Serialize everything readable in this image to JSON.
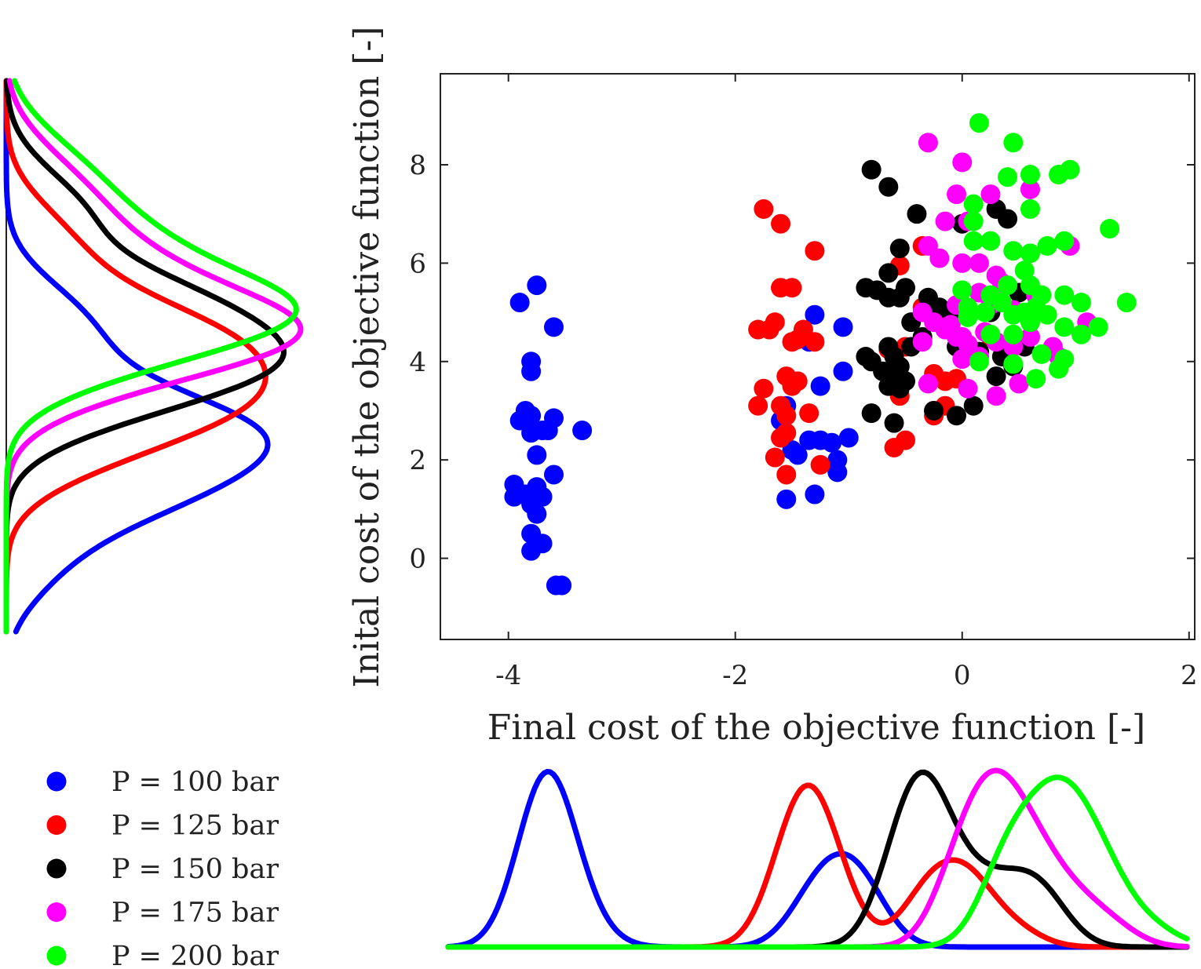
{
  "chart_data": {
    "type": "scatter",
    "xlabel": "Final cost of the objective function [-]",
    "ylabel": "Inital cost of the objective function [-]",
    "xlim": [
      -4.6,
      2.05
    ],
    "ylim": [
      -1.65,
      9.85
    ],
    "x_ticks": [
      -4,
      -2,
      0,
      2
    ],
    "x_tick_labels": [
      "-4",
      "-2",
      "0",
      "2"
    ],
    "y_ticks": [
      0,
      2,
      4,
      6,
      8
    ],
    "y_tick_labels": [
      "0",
      "2",
      "4",
      "6",
      "8"
    ],
    "grid": false,
    "legend_position": "bottom-left",
    "marginal_densities": "kernel density curves on the bottom (final cost) and left (initial cost) margins, one per series",
    "series": [
      {
        "name": "P = 100 bar",
        "color": "#0000ff",
        "points": [
          [
            -3.75,
            5.55
          ],
          [
            -3.9,
            5.2
          ],
          [
            -3.6,
            4.7
          ],
          [
            -3.8,
            4.0
          ],
          [
            -3.8,
            3.8
          ],
          [
            -3.85,
            3.0
          ],
          [
            -3.9,
            2.8
          ],
          [
            -3.8,
            2.9
          ],
          [
            -3.7,
            2.6
          ],
          [
            -3.8,
            2.55
          ],
          [
            -3.6,
            2.85
          ],
          [
            -3.35,
            2.6
          ],
          [
            -3.65,
            2.6
          ],
          [
            -3.75,
            2.1
          ],
          [
            -3.6,
            1.7
          ],
          [
            -3.95,
            1.5
          ],
          [
            -3.75,
            1.45
          ],
          [
            -3.85,
            1.3
          ],
          [
            -3.95,
            1.25
          ],
          [
            -3.7,
            1.25
          ],
          [
            -3.8,
            1.1
          ],
          [
            -3.75,
            0.9
          ],
          [
            -3.8,
            0.5
          ],
          [
            -3.7,
            0.3
          ],
          [
            -3.8,
            0.15
          ],
          [
            -3.58,
            -0.55
          ],
          [
            -3.53,
            -0.55
          ],
          [
            -1.3,
            4.95
          ],
          [
            -1.05,
            4.7
          ],
          [
            -1.35,
            4.4
          ],
          [
            -1.05,
            3.8
          ],
          [
            -1.25,
            3.5
          ],
          [
            -1.55,
            3.1
          ],
          [
            -1.6,
            2.8
          ],
          [
            -1.35,
            2.4
          ],
          [
            -1.25,
            2.4
          ],
          [
            -1.15,
            2.35
          ],
          [
            -1.0,
            2.45
          ],
          [
            -1.5,
            2.2
          ],
          [
            -1.45,
            2.1
          ],
          [
            -1.1,
            2.0
          ],
          [
            -1.1,
            1.75
          ],
          [
            -1.3,
            1.3
          ],
          [
            -1.55,
            1.2
          ]
        ]
      },
      {
        "name": "P = 125 bar",
        "color": "#ff0000",
        "points": [
          [
            -1.75,
            7.1
          ],
          [
            -1.6,
            6.8
          ],
          [
            -1.3,
            6.25
          ],
          [
            -1.6,
            5.5
          ],
          [
            -1.5,
            5.5
          ],
          [
            -1.65,
            4.8
          ],
          [
            -1.7,
            4.65
          ],
          [
            -1.8,
            4.65
          ],
          [
            -1.4,
            4.65
          ],
          [
            -1.45,
            4.45
          ],
          [
            -1.5,
            4.4
          ],
          [
            -1.3,
            4.4
          ],
          [
            -1.55,
            3.7
          ],
          [
            -1.45,
            3.6
          ],
          [
            -1.5,
            3.5
          ],
          [
            -1.75,
            3.45
          ],
          [
            -1.8,
            3.1
          ],
          [
            -1.6,
            3.1
          ],
          [
            -1.55,
            2.9
          ],
          [
            -1.35,
            2.95
          ],
          [
            -1.55,
            2.55
          ],
          [
            -1.6,
            2.45
          ],
          [
            -1.65,
            2.05
          ],
          [
            -1.55,
            1.7
          ],
          [
            -1.25,
            1.9
          ],
          [
            -0.55,
            5.95
          ],
          [
            -0.35,
            6.35
          ],
          [
            -0.35,
            5.1
          ],
          [
            -0.15,
            5.0
          ],
          [
            -0.5,
            4.3
          ],
          [
            -0.65,
            4.25
          ],
          [
            -0.25,
            3.75
          ],
          [
            -0.15,
            3.6
          ],
          [
            -0.05,
            3.65
          ],
          [
            -0.55,
            3.3
          ],
          [
            -0.25,
            3.0
          ],
          [
            -0.15,
            3.1
          ],
          [
            -0.25,
            2.9
          ],
          [
            -0.5,
            2.4
          ],
          [
            -0.6,
            2.25
          ],
          [
            0.25,
            4.5
          ],
          [
            0.15,
            4.2
          ]
        ]
      },
      {
        "name": "P = 150 bar",
        "color": "#000000",
        "points": [
          [
            -0.8,
            7.9
          ],
          [
            -0.65,
            7.55
          ],
          [
            -0.4,
            7.0
          ],
          [
            -0.85,
            5.5
          ],
          [
            -0.75,
            5.45
          ],
          [
            -0.65,
            5.8
          ],
          [
            -0.55,
            5.3
          ],
          [
            -0.5,
            5.5
          ],
          [
            -0.65,
            5.3
          ],
          [
            -0.55,
            6.3
          ],
          [
            -0.3,
            5.3
          ],
          [
            -0.45,
            4.8
          ],
          [
            -0.2,
            5.1
          ],
          [
            -0.1,
            5.0
          ],
          [
            -0.85,
            4.1
          ],
          [
            -0.8,
            4.0
          ],
          [
            -0.65,
            4.3
          ],
          [
            -0.6,
            4.1
          ],
          [
            -0.55,
            3.9
          ],
          [
            -0.45,
            4.3
          ],
          [
            -0.35,
            4.5
          ],
          [
            -0.7,
            3.8
          ],
          [
            -0.55,
            3.7
          ],
          [
            -0.5,
            3.6
          ],
          [
            -0.65,
            3.5
          ],
          [
            -0.55,
            3.45
          ],
          [
            -0.8,
            2.95
          ],
          [
            -0.6,
            2.75
          ],
          [
            -0.25,
            3.0
          ],
          [
            -0.05,
            2.9
          ],
          [
            0.1,
            3.1
          ],
          [
            0.3,
            3.7
          ],
          [
            0.45,
            3.9
          ],
          [
            -0.05,
            4.3
          ],
          [
            0.15,
            4.2
          ],
          [
            0.3,
            7.1
          ],
          [
            0.4,
            6.9
          ],
          [
            0.0,
            6.8
          ],
          [
            0.5,
            5.4
          ],
          [
            0.25,
            5.0
          ],
          [
            0.55,
            4.3
          ],
          [
            0.35,
            4.1
          ]
        ]
      },
      {
        "name": "P = 175 bar",
        "color": "#ff00ff",
        "points": [
          [
            -0.3,
            8.45
          ],
          [
            0.0,
            8.05
          ],
          [
            -0.05,
            7.4
          ],
          [
            0.25,
            7.4
          ],
          [
            0.6,
            7.5
          ],
          [
            0.05,
            6.85
          ],
          [
            -0.15,
            6.85
          ],
          [
            -0.3,
            6.35
          ],
          [
            -0.2,
            6.1
          ],
          [
            0.0,
            6.0
          ],
          [
            0.15,
            6.0
          ],
          [
            0.3,
            5.75
          ],
          [
            0.15,
            5.4
          ],
          [
            0.35,
            5.6
          ],
          [
            -0.35,
            5.0
          ],
          [
            -0.25,
            4.8
          ],
          [
            -0.1,
            4.75
          ],
          [
            0.0,
            4.5
          ],
          [
            0.2,
            4.6
          ],
          [
            0.3,
            4.4
          ],
          [
            -0.35,
            4.4
          ],
          [
            -0.15,
            4.65
          ],
          [
            -0.05,
            4.5
          ],
          [
            0.05,
            4.35
          ],
          [
            0.45,
            4.3
          ],
          [
            0.6,
            4.5
          ],
          [
            0.8,
            4.3
          ],
          [
            0.15,
            4.1
          ],
          [
            0.0,
            4.05
          ],
          [
            -0.3,
            3.55
          ],
          [
            0.05,
            3.45
          ],
          [
            0.3,
            3.3
          ],
          [
            0.5,
            3.55
          ],
          [
            0.85,
            4.1
          ],
          [
            0.95,
            6.35
          ],
          [
            1.1,
            4.8
          ],
          [
            0.65,
            5.35
          ],
          [
            0.45,
            5.05
          ],
          [
            0.25,
            5.15
          ],
          [
            -0.05,
            5.15
          ]
        ]
      },
      {
        "name": "P = 200 bar",
        "color": "#00ff00",
        "points": [
          [
            0.15,
            8.85
          ],
          [
            0.45,
            8.45
          ],
          [
            0.4,
            7.75
          ],
          [
            0.6,
            7.8
          ],
          [
            0.85,
            7.8
          ],
          [
            0.95,
            7.9
          ],
          [
            0.1,
            7.2
          ],
          [
            0.6,
            7.1
          ],
          [
            0.1,
            6.85
          ],
          [
            0.1,
            6.45
          ],
          [
            0.25,
            6.45
          ],
          [
            0.45,
            6.25
          ],
          [
            0.6,
            6.2
          ],
          [
            0.75,
            6.35
          ],
          [
            0.9,
            6.45
          ],
          [
            1.3,
            6.7
          ],
          [
            0.55,
            5.85
          ],
          [
            0.4,
            5.55
          ],
          [
            0.6,
            5.55
          ],
          [
            0.7,
            5.35
          ],
          [
            0.0,
            5.45
          ],
          [
            0.25,
            5.35
          ],
          [
            0.35,
            5.2
          ],
          [
            0.05,
            5.1
          ],
          [
            0.2,
            5.0
          ],
          [
            0.45,
            4.95
          ],
          [
            0.55,
            5.0
          ],
          [
            0.65,
            5.1
          ],
          [
            0.75,
            4.95
          ],
          [
            0.9,
            5.35
          ],
          [
            1.05,
            5.2
          ],
          [
            1.45,
            5.2
          ],
          [
            0.05,
            4.9
          ],
          [
            0.6,
            4.8
          ],
          [
            0.45,
            4.55
          ],
          [
            0.25,
            4.55
          ],
          [
            0.9,
            4.7
          ],
          [
            1.05,
            4.55
          ],
          [
            1.2,
            4.7
          ],
          [
            0.7,
            4.15
          ],
          [
            0.9,
            4.05
          ],
          [
            0.15,
            4.0
          ],
          [
            0.45,
            3.95
          ],
          [
            0.65,
            3.65
          ],
          [
            0.85,
            3.85
          ]
        ]
      }
    ]
  }
}
